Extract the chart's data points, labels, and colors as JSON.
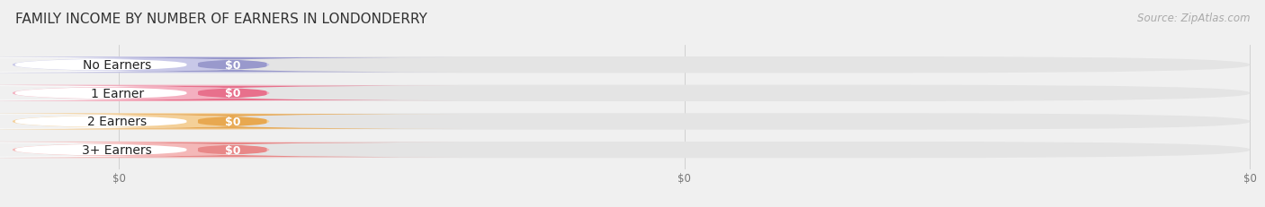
{
  "title": "FAMILY INCOME BY NUMBER OF EARNERS IN LONDONDERRY",
  "source": "Source: ZipAtlas.com",
  "categories": [
    "No Earners",
    "1 Earner",
    "2 Earners",
    "3+ Earners"
  ],
  "values": [
    0,
    0,
    0,
    0
  ],
  "bar_colors": [
    "#9999cc",
    "#e8708c",
    "#e8a850",
    "#e88888"
  ],
  "bar_light_colors": [
    "#c8c8e8",
    "#f4b0c0",
    "#f4d098",
    "#f4b8b8"
  ],
  "tick_labels": [
    "$0",
    "$0",
    "$0"
  ],
  "background_color": "#f0f0f0",
  "bar_track_color": "#e4e4e4",
  "white_label_color": "#ffffff",
  "title_fontsize": 11,
  "source_fontsize": 8.5,
  "label_fontsize": 10,
  "value_fontsize": 9
}
